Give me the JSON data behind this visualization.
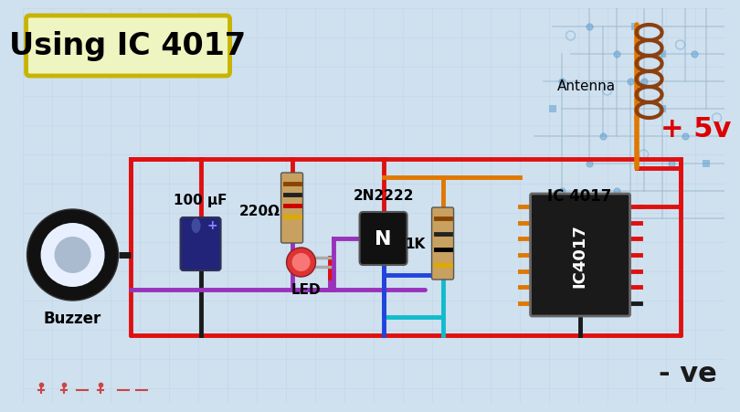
{
  "bg_color": "#cfe0ef",
  "grid_color": "#b8cfe0",
  "title_text": "Using IC 4017",
  "title_box_bg": "#eef5c0",
  "title_box_border": "#c8b400",
  "title_fontsize": 24,
  "plus5v_text": "+ 5v",
  "minus_ve_text": "- ve",
  "component_labels": {
    "capacitor": "100 μF",
    "resistor1": "220Ω",
    "led": "LED",
    "transistor": "2N2222",
    "resistor2": "1K",
    "ic": "IC 4017",
    "buzzer": "Buzzer",
    "antenna": "Antenna"
  },
  "wire_red": "#e01010",
  "wire_dark": "#1a1a1a",
  "wire_purple": "#9933bb",
  "wire_blue": "#2244dd",
  "wire_cyan": "#11bbcc",
  "wire_orange": "#e07800",
  "pcb_trace_color": "#9ab8cc",
  "pcb_dot_color": "#5599cc",
  "coil_color": "#8B4010",
  "cap_color": "#22247a",
  "ic_color": "#1a1a1a",
  "buzzer_outer": "#111111",
  "buzzer_inner": "#e8f0ff",
  "buzzer_inner2": "#aabbd0",
  "transistor_color": "#111111",
  "resistor_body": "#c8a060",
  "led_outer": "#dd3333",
  "led_inner": "#ff8888"
}
